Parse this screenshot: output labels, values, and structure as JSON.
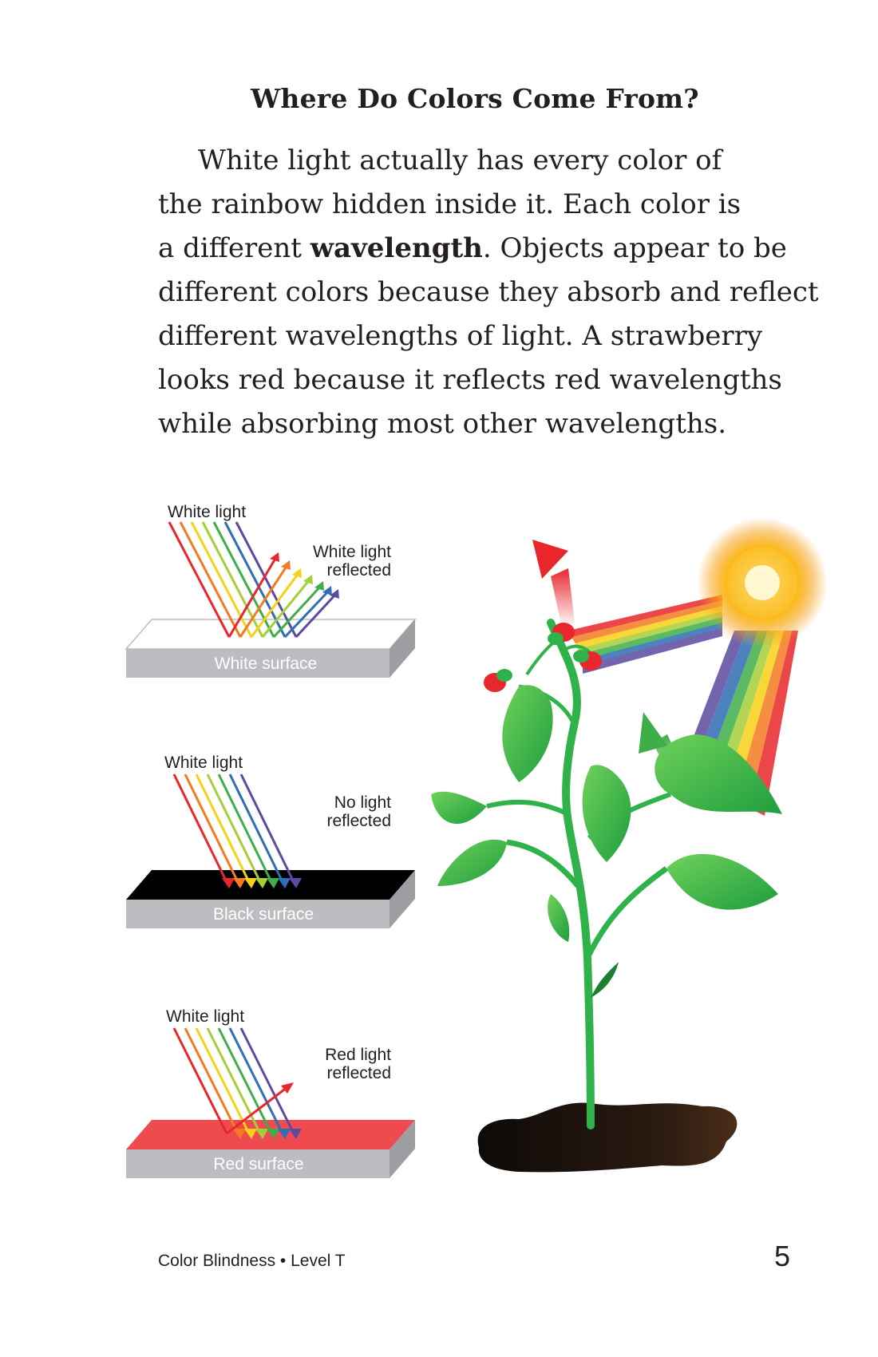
{
  "heading": "Where Do Colors Come From?",
  "paragraph": {
    "line1": "White light actually has every color of",
    "line2": "the rainbow hidden inside it. Each color is",
    "line3_pre": "a different ",
    "line3_bold": "wavelength",
    "line3_post": ". Objects appear to be",
    "line4": "different colors because they absorb and reflect",
    "line5": "different wavelengths of light. A strawberry",
    "line6": "looks red because it reflects red wavelengths",
    "line7": "while absorbing most other wavelengths."
  },
  "diagrams": {
    "white": {
      "incoming": "White light",
      "reflected_1": "White light",
      "reflected_2": "reflected",
      "surface": "White surface"
    },
    "black": {
      "incoming": "White light",
      "reflected_1": "No light",
      "reflected_2": "reflected",
      "surface": "Black surface"
    },
    "red": {
      "incoming": "White light",
      "reflected_1": "Red light",
      "reflected_2": "reflected",
      "surface": "Red surface"
    }
  },
  "colors": {
    "spectrum": [
      "#e8262b",
      "#f47b20",
      "#f7d117",
      "#a6ce39",
      "#3fae49",
      "#2f6db5",
      "#5b4a9f"
    ],
    "surface_gray": "#bcbdc0",
    "red_surface": "#ef4b4f",
    "leaf_green": "#2fb24a"
  },
  "footer": {
    "book": "Color Blindness • Level T",
    "page": "5"
  }
}
